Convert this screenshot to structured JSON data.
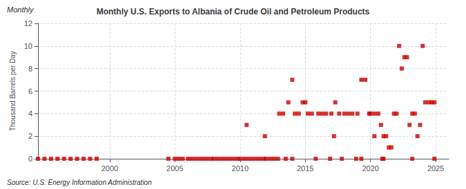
{
  "chart_data": {
    "type": "scatter",
    "title": "Monthly U.S. Exports to Albania of Crude Oil and Petroleum Products",
    "annotations": [
      "Monthly",
      "Source: U.S. Energy Information Administration"
    ],
    "ylabel": "Thousand Barrels per Day",
    "color": "#cc0000",
    "marker": "square",
    "grid": true,
    "xlim": [
      1994.5,
      2026
    ],
    "ylim": [
      0,
      12
    ],
    "xticks": [
      2000,
      2005,
      2010,
      2015,
      2020,
      2025
    ],
    "yticks": [
      0,
      2,
      4,
      6,
      8,
      10,
      12
    ],
    "points": [
      [
        1994.5,
        0
      ],
      [
        1995.0,
        0
      ],
      [
        1995.5,
        0
      ],
      [
        1996.0,
        0
      ],
      [
        1996.5,
        0
      ],
      [
        1997.0,
        0
      ],
      [
        1997.5,
        0
      ],
      [
        1998.0,
        0
      ],
      [
        1998.5,
        0
      ],
      [
        1999.0,
        0
      ],
      [
        2004.5,
        0
      ],
      [
        2005.0,
        0
      ],
      [
        2005.3,
        0
      ],
      [
        2005.6,
        0
      ],
      [
        2006.0,
        0
      ],
      [
        2006.3,
        0
      ],
      [
        2006.6,
        0
      ],
      [
        2006.9,
        0
      ],
      [
        2007.2,
        0
      ],
      [
        2007.5,
        0
      ],
      [
        2007.8,
        0
      ],
      [
        2008.0,
        0
      ],
      [
        2008.3,
        0
      ],
      [
        2008.6,
        0
      ],
      [
        2008.9,
        0
      ],
      [
        2009.2,
        0
      ],
      [
        2009.5,
        0
      ],
      [
        2009.8,
        0
      ],
      [
        2010.0,
        0
      ],
      [
        2010.3,
        0
      ],
      [
        2010.6,
        0
      ],
      [
        2010.9,
        0
      ],
      [
        2011.2,
        0
      ],
      [
        2011.5,
        0
      ],
      [
        2011.8,
        0
      ],
      [
        2012.0,
        0
      ],
      [
        2012.3,
        0
      ],
      [
        2012.6,
        0
      ],
      [
        2012.9,
        0
      ],
      [
        2010.5,
        3
      ],
      [
        2011.9,
        2
      ],
      [
        2013.0,
        4
      ],
      [
        2013.3,
        4
      ],
      [
        2013.7,
        5
      ],
      [
        2014.0,
        7
      ],
      [
        2014.2,
        4
      ],
      [
        2014.5,
        4
      ],
      [
        2014.8,
        5
      ],
      [
        2015.0,
        5
      ],
      [
        2015.2,
        4
      ],
      [
        2015.5,
        4
      ],
      [
        2016.0,
        4
      ],
      [
        2016.3,
        4
      ],
      [
        2016.6,
        4
      ],
      [
        2017.0,
        4
      ],
      [
        2017.3,
        5
      ],
      [
        2017.6,
        4
      ],
      [
        2018.0,
        4
      ],
      [
        2018.3,
        4
      ],
      [
        2018.6,
        4
      ],
      [
        2019.0,
        4
      ],
      [
        2019.3,
        7
      ],
      [
        2019.6,
        7
      ],
      [
        2019.9,
        4
      ],
      [
        2020.0,
        4
      ],
      [
        2020.3,
        4
      ],
      [
        2020.6,
        4
      ],
      [
        2020.8,
        3
      ],
      [
        2021.0,
        2
      ],
      [
        2021.2,
        2
      ],
      [
        2021.4,
        1
      ],
      [
        2021.6,
        1
      ],
      [
        2021.8,
        4
      ],
      [
        2022.0,
        4
      ],
      [
        2022.2,
        10
      ],
      [
        2022.4,
        8
      ],
      [
        2022.6,
        9
      ],
      [
        2022.8,
        9
      ],
      [
        2023.0,
        3
      ],
      [
        2023.2,
        4
      ],
      [
        2023.4,
        4
      ],
      [
        2023.6,
        2
      ],
      [
        2023.8,
        3
      ],
      [
        2024.0,
        10
      ],
      [
        2024.2,
        5
      ],
      [
        2024.5,
        5
      ],
      [
        2024.7,
        5
      ],
      [
        2024.9,
        5
      ],
      [
        2013.5,
        0
      ],
      [
        2014.0,
        0
      ],
      [
        2015.8,
        0
      ],
      [
        2016.9,
        0
      ],
      [
        2017.8,
        0
      ],
      [
        2018.9,
        0
      ],
      [
        2019.3,
        0
      ],
      [
        2020.9,
        0
      ],
      [
        2021.0,
        0
      ],
      [
        2023.2,
        0
      ],
      [
        2024.9,
        0
      ],
      [
        2017.2,
        2
      ],
      [
        2020.3,
        2
      ]
    ]
  }
}
